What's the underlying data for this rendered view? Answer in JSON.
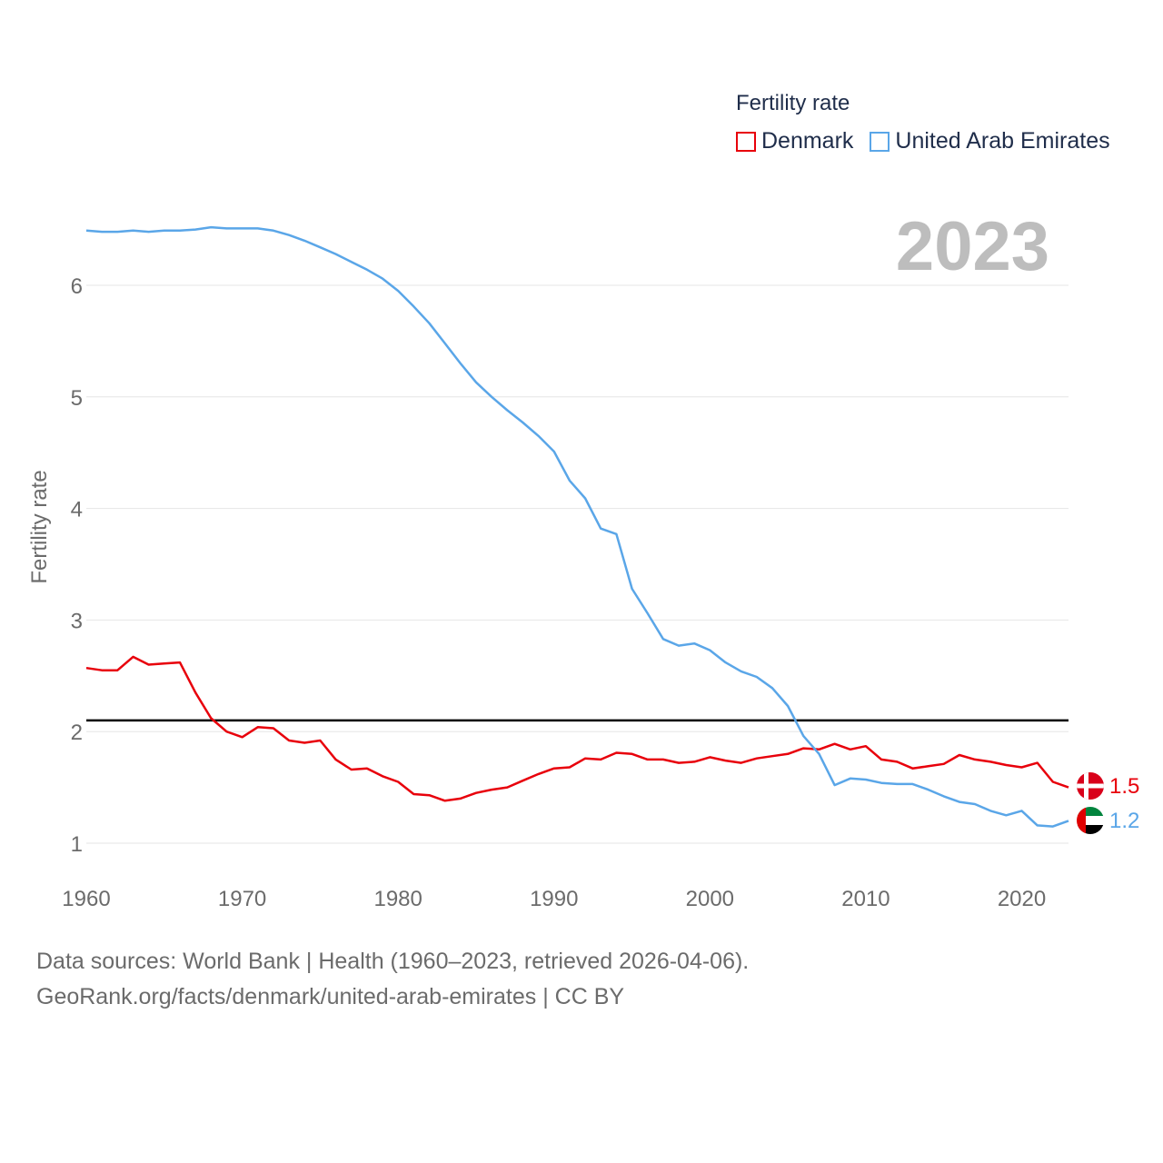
{
  "legend": {
    "title": "Fertility rate",
    "items": [
      {
        "label": "Denmark",
        "color": "#e8000b"
      },
      {
        "label": "United Arab Emirates",
        "color": "#5aa6e8"
      }
    ]
  },
  "current_year": "2023",
  "footer": {
    "line1": "Data sources: World Bank | Health (1960–2023, retrieved 2026-04-06).",
    "line2": "GeoRank.org/facts/denmark/united-arab-emirates | CC BY"
  },
  "chart_data": {
    "type": "line",
    "title": "Fertility rate",
    "ylabel": "Fertility rate",
    "xlabel": "",
    "xlim": [
      1960,
      2023
    ],
    "ylim": [
      0.85,
      6.5
    ],
    "xticks": [
      1960,
      1970,
      1980,
      1990,
      2000,
      2010,
      2020
    ],
    "yticks": [
      1,
      2,
      3,
      4,
      5,
      6
    ],
    "reference_line": {
      "y": 2.1,
      "color": "#000000"
    },
    "x": [
      1960,
      1961,
      1962,
      1963,
      1964,
      1965,
      1966,
      1967,
      1968,
      1969,
      1970,
      1971,
      1972,
      1973,
      1974,
      1975,
      1976,
      1977,
      1978,
      1979,
      1980,
      1981,
      1982,
      1983,
      1984,
      1985,
      1986,
      1987,
      1988,
      1989,
      1990,
      1991,
      1992,
      1993,
      1994,
      1995,
      1996,
      1997,
      1998,
      1999,
      2000,
      2001,
      2002,
      2003,
      2004,
      2005,
      2006,
      2007,
      2008,
      2009,
      2010,
      2011,
      2012,
      2013,
      2014,
      2015,
      2016,
      2017,
      2018,
      2019,
      2020,
      2021,
      2022,
      2023
    ],
    "series": [
      {
        "name": "Denmark",
        "color": "#e8000b",
        "end_label": "1.5",
        "flag": "denmark-flag",
        "values": [
          2.57,
          2.55,
          2.55,
          2.67,
          2.6,
          2.61,
          2.62,
          2.35,
          2.12,
          2.0,
          1.95,
          2.04,
          2.03,
          1.92,
          1.9,
          1.92,
          1.75,
          1.66,
          1.67,
          1.6,
          1.55,
          1.44,
          1.43,
          1.38,
          1.4,
          1.45,
          1.48,
          1.5,
          1.56,
          1.62,
          1.67,
          1.68,
          1.76,
          1.75,
          1.81,
          1.8,
          1.75,
          1.75,
          1.72,
          1.73,
          1.77,
          1.74,
          1.72,
          1.76,
          1.78,
          1.8,
          1.85,
          1.84,
          1.89,
          1.84,
          1.87,
          1.75,
          1.73,
          1.67,
          1.69,
          1.71,
          1.79,
          1.75,
          1.73,
          1.7,
          1.68,
          1.72,
          1.55,
          1.5
        ]
      },
      {
        "name": "United Arab Emirates",
        "color": "#5aa6e8",
        "end_label": "1.2",
        "flag": "uae-flag",
        "values": [
          6.49,
          6.48,
          6.48,
          6.49,
          6.48,
          6.49,
          6.49,
          6.5,
          6.52,
          6.51,
          6.51,
          6.51,
          6.49,
          6.45,
          6.4,
          6.34,
          6.28,
          6.21,
          6.14,
          6.06,
          5.95,
          5.81,
          5.66,
          5.48,
          5.3,
          5.13,
          5.0,
          4.88,
          4.77,
          4.65,
          4.51,
          4.25,
          4.09,
          3.82,
          3.77,
          3.28,
          3.06,
          2.83,
          2.77,
          2.79,
          2.73,
          2.62,
          2.54,
          2.49,
          2.39,
          2.23,
          1.96,
          1.8,
          1.52,
          1.58,
          1.57,
          1.54,
          1.53,
          1.53,
          1.48,
          1.42,
          1.37,
          1.35,
          1.29,
          1.25,
          1.29,
          1.16,
          1.15,
          1.2
        ]
      }
    ]
  }
}
